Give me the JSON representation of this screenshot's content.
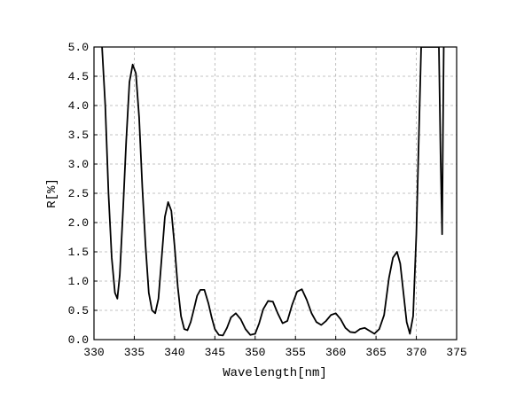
{
  "chart_data": {
    "type": "line",
    "title": "",
    "xlabel": "Wavelength[nm]",
    "ylabel": "R[%]",
    "xlim": [
      330,
      375
    ],
    "ylim": [
      0,
      5.0
    ],
    "x_ticks": [
      330,
      335,
      340,
      345,
      350,
      355,
      360,
      365,
      370,
      375
    ],
    "y_ticks": [
      0.0,
      0.5,
      1.0,
      1.5,
      2.0,
      2.5,
      3.0,
      3.5,
      4.0,
      4.5,
      5.0
    ],
    "x_tick_labels": [
      "330",
      "335",
      "340",
      "345",
      "350",
      "355",
      "360",
      "365",
      "370",
      "375"
    ],
    "y_tick_labels": [
      "0.0",
      "0.5",
      "1.0",
      "1.5",
      "2.0",
      "2.5",
      "3.0",
      "3.5",
      "4.0",
      "4.5",
      "5.0"
    ],
    "grid": true,
    "grid_style": "dashed",
    "line_color": "#000000",
    "series": [
      {
        "x": [
          331.0,
          331.4,
          331.8,
          332.2,
          332.6,
          332.9,
          333.2,
          333.6,
          334.0,
          334.4,
          334.8,
          335.2,
          335.6,
          336.0,
          336.4,
          336.8,
          337.2,
          337.6,
          338.0,
          338.4,
          338.8,
          339.2,
          339.6,
          340.0,
          340.4,
          340.8,
          341.2,
          341.6,
          342.0,
          342.4,
          342.8,
          343.2,
          343.7,
          344.2,
          344.6,
          345.0,
          345.5,
          346.0,
          346.5,
          347.0,
          347.6,
          348.2,
          348.8,
          349.4,
          350.0,
          350.5,
          351.0,
          351.6,
          352.2,
          352.8,
          353.4,
          354.0,
          354.6,
          355.2,
          355.8,
          356.4,
          357.0,
          357.6,
          358.2,
          358.8,
          359.4,
          360.0,
          360.6,
          361.2,
          361.8,
          362.4,
          363.0,
          363.6,
          364.2,
          364.8,
          365.4,
          366.0,
          366.6,
          367.1,
          367.6,
          368.0,
          368.4,
          368.8,
          369.2,
          369.6,
          370.0,
          370.3,
          370.6,
          370.9,
          371.2,
          371.6,
          372.0,
          372.4,
          372.8,
          373.0,
          373.2,
          373.3,
          373.4,
          373.5
        ],
        "y": [
          5.0,
          4.0,
          2.5,
          1.4,
          0.8,
          0.7,
          1.1,
          2.2,
          3.4,
          4.4,
          4.7,
          4.55,
          3.8,
          2.6,
          1.6,
          0.8,
          0.5,
          0.45,
          0.7,
          1.4,
          2.1,
          2.35,
          2.2,
          1.6,
          0.9,
          0.4,
          0.18,
          0.16,
          0.3,
          0.52,
          0.75,
          0.85,
          0.85,
          0.62,
          0.38,
          0.18,
          0.08,
          0.07,
          0.2,
          0.38,
          0.45,
          0.35,
          0.18,
          0.08,
          0.1,
          0.28,
          0.52,
          0.66,
          0.65,
          0.45,
          0.28,
          0.32,
          0.6,
          0.82,
          0.86,
          0.68,
          0.45,
          0.3,
          0.25,
          0.32,
          0.42,
          0.45,
          0.35,
          0.2,
          0.13,
          0.12,
          0.18,
          0.2,
          0.15,
          0.1,
          0.18,
          0.42,
          1.05,
          1.4,
          1.5,
          1.3,
          0.8,
          0.3,
          0.1,
          0.4,
          1.8,
          3.4,
          5.0,
          5.0,
          5.0,
          5.0,
          5.0,
          5.0,
          5.0,
          3.2,
          1.8,
          3.5,
          5.0,
          5.0
        ]
      }
    ]
  }
}
